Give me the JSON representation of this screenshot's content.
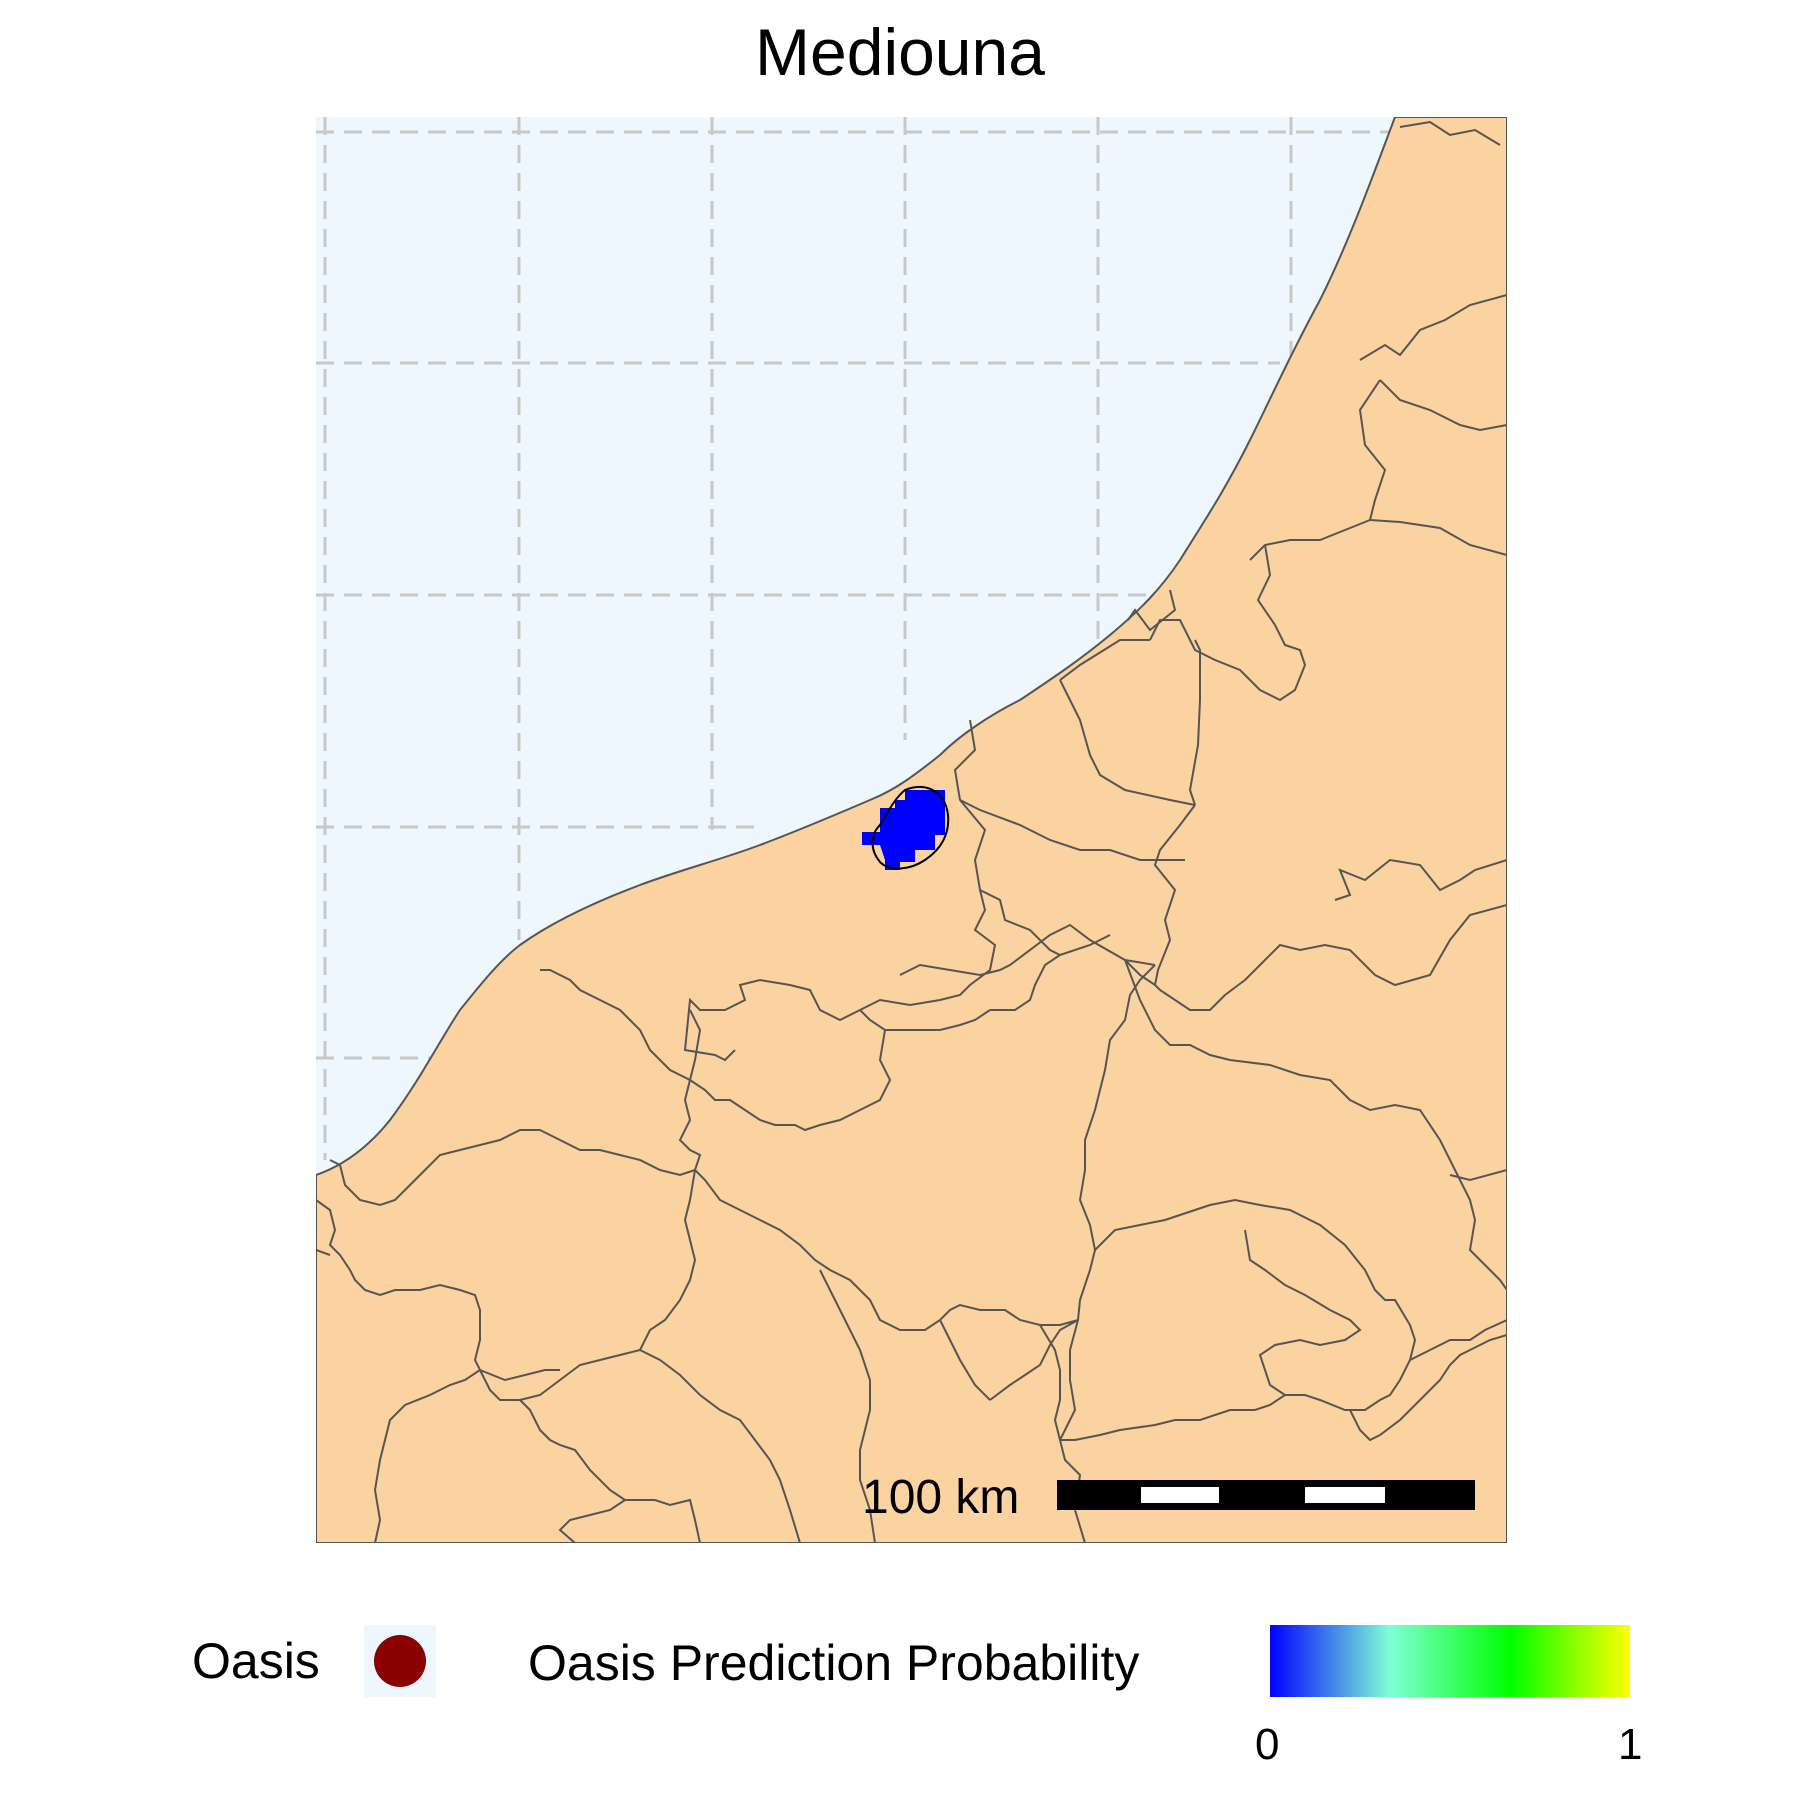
{
  "title": "Mediouna",
  "colors": {
    "sea": "#eef7fd",
    "land": "#fbd3a0",
    "border": "#555555",
    "grid": "#c8c8c8",
    "prediction": "#0000ff",
    "oasis": "#8b0000"
  },
  "scale_bar": {
    "label": "100 km"
  },
  "legend": {
    "oasis_label": "Oasis",
    "oasis_icon": "filled-circle",
    "probability_label": "Oasis Prediction Probability",
    "colorbar": {
      "min_label": "0",
      "max_label": "1",
      "stops": [
        "#0000ff",
        "#7fffd4",
        "#00ff00",
        "#ffff00"
      ]
    }
  }
}
